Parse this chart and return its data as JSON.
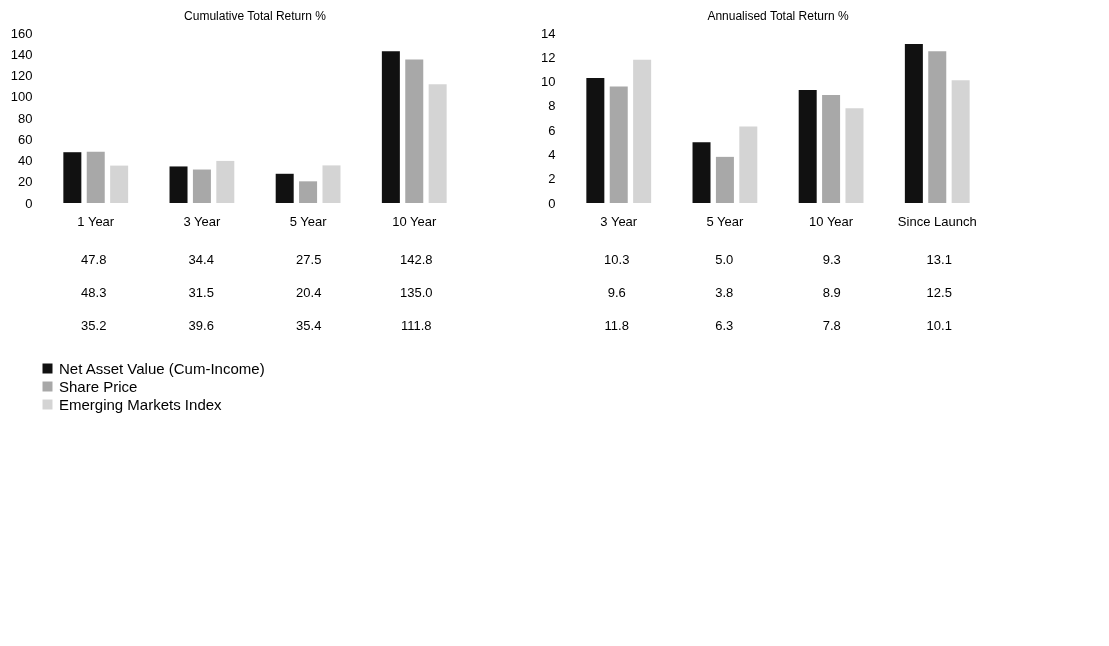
{
  "chart_data": [
    {
      "type": "bar",
      "title": "Cumulative Total Return %",
      "categories": [
        "1 Year",
        "3 Year",
        "5 Year",
        "10 Year"
      ],
      "ylim": [
        0,
        160
      ],
      "yticks": [
        0,
        20,
        40,
        60,
        80,
        100,
        120,
        140,
        160
      ],
      "grid": false,
      "legend": "bottom left",
      "series": [
        {
          "name": "Net Asset Value (Cum-Income)",
          "color": "#111111",
          "values": [
            47.8,
            34.4,
            27.5,
            142.8
          ],
          "value_labels": [
            "47.8",
            "34.4",
            "27.5",
            "142.8"
          ]
        },
        {
          "name": "Share Price",
          "color": "#a8a8a8",
          "values": [
            48.3,
            31.5,
            20.4,
            135.0
          ],
          "value_labels": [
            "48.3",
            "31.5",
            "20.4",
            "135.0"
          ]
        },
        {
          "name": "Emerging Markets Index",
          "color": "#d4d4d4",
          "values": [
            35.2,
            39.6,
            35.4,
            111.8
          ],
          "value_labels": [
            "35.2",
            "39.6",
            "35.4",
            "111.8"
          ]
        }
      ]
    },
    {
      "type": "bar",
      "title": "Annualised Total Return %",
      "categories": [
        "3 Year",
        "5 Year",
        "10 Year",
        "Since Launch"
      ],
      "ylim": [
        0,
        14
      ],
      "yticks": [
        0,
        2,
        4,
        6,
        8,
        10,
        12,
        14
      ],
      "grid": false,
      "series": [
        {
          "color": "#111111",
          "values": [
            10.3,
            5.0,
            9.3,
            13.1
          ],
          "value_labels": [
            "10.3",
            "5.0",
            "9.3",
            "13.1"
          ]
        },
        {
          "color": "#a8a8a8",
          "values": [
            9.6,
            3.8,
            8.9,
            12.5
          ],
          "value_labels": [
            "9.6",
            "3.8",
            "8.9",
            "12.5"
          ]
        },
        {
          "color": "#d4d4d4",
          "values": [
            11.8,
            6.3,
            7.8,
            10.1
          ],
          "value_labels": [
            "11.8",
            "6.3",
            "7.8",
            "10.1"
          ]
        }
      ]
    }
  ]
}
